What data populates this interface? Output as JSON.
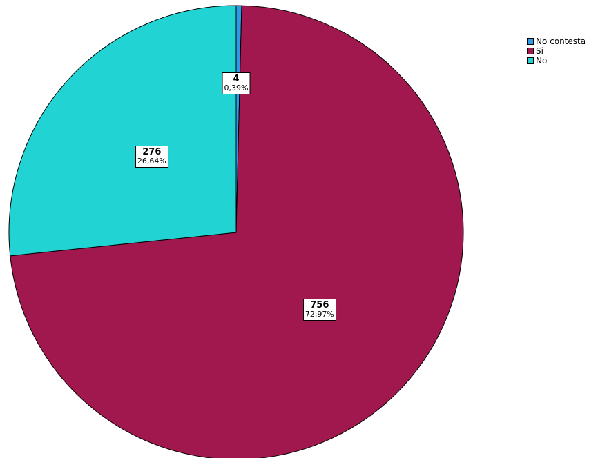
{
  "chart_data": {
    "type": "pie",
    "categories": [
      "No contesta",
      "Si",
      "No"
    ],
    "values": [
      4,
      756,
      276
    ],
    "percent_labels": [
      "0,39%",
      "72,97%",
      "26,64%"
    ],
    "colors": [
      "#2E9BE8",
      "#A0184E",
      "#22D3D3"
    ],
    "start_angle_deg_clockwise_from_top": 0,
    "legend_position": "top-right",
    "legend": [
      {
        "label": "No contesta",
        "color": "#2E9BE8"
      },
      {
        "label": "Si",
        "color": "#A0184E"
      },
      {
        "label": "No",
        "color": "#22D3D3"
      }
    ]
  }
}
